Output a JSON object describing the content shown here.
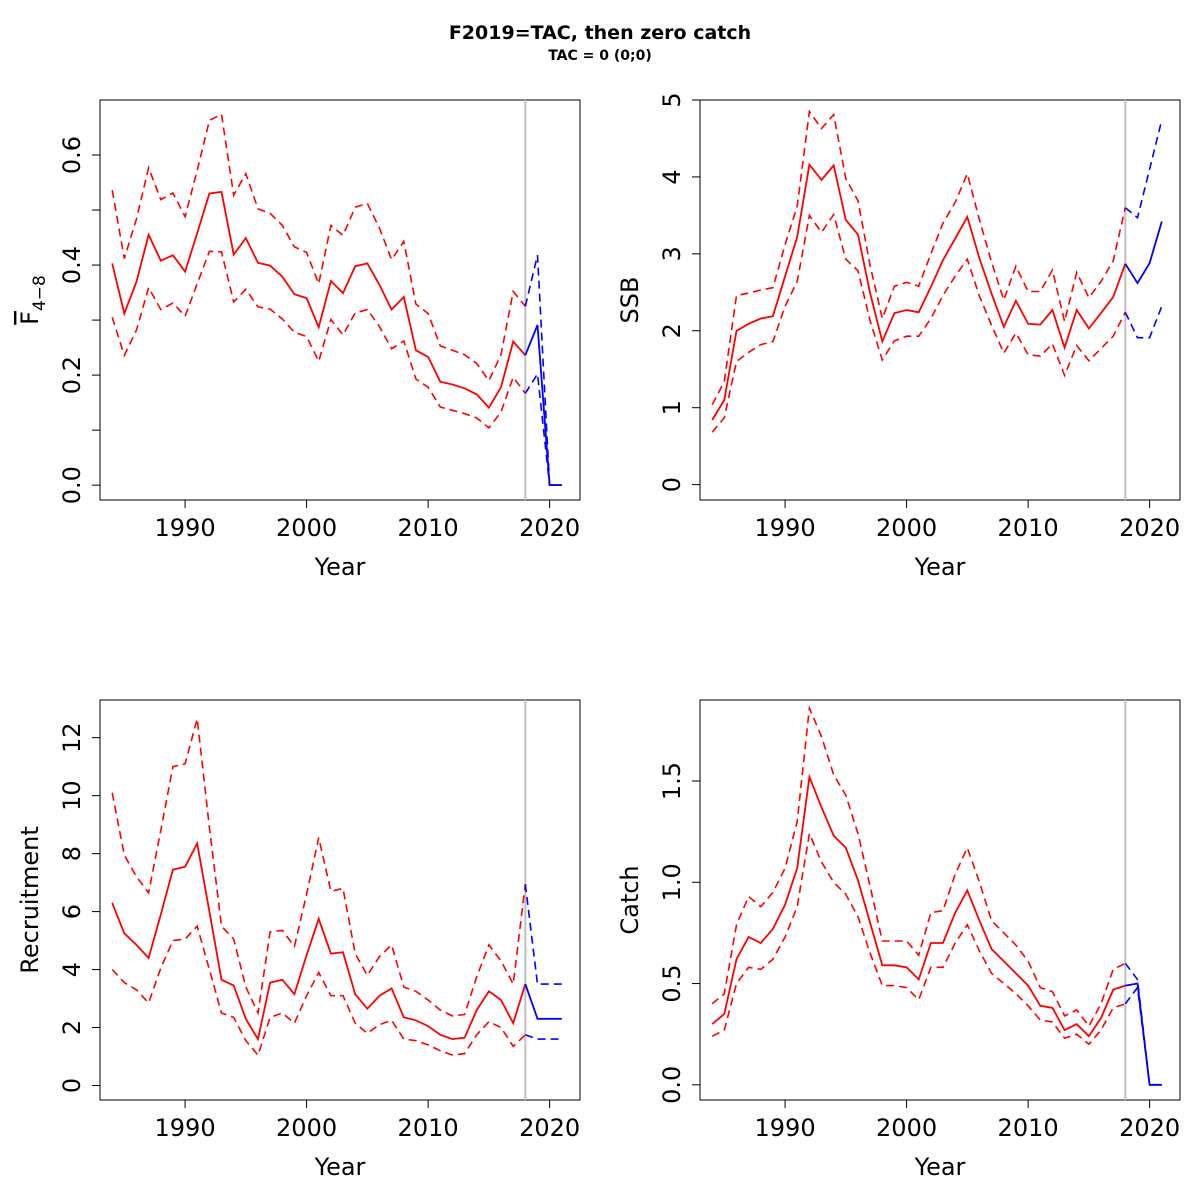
{
  "title": "F2019=TAC, then zero catch",
  "subtitle": "TAC = 0 (0;0)",
  "colors": {
    "historic": "#ff0000",
    "forecast": "#0000ff",
    "reference_line": "#c0c0c0"
  },
  "chart_data": [
    {
      "type": "line",
      "id": "fbar",
      "xlabel": "Year",
      "ylabel": "F",
      "ylabel_subscript": "4−8",
      "xlim": [
        1983,
        2022.5
      ],
      "ylim": [
        -0.027,
        0.7
      ],
      "xticks": [
        1990,
        2000,
        2010,
        2020
      ],
      "yticks": [
        0.0,
        0.2,
        0.4,
        0.6
      ],
      "ytick_labels": [
        "0.0",
        "0.2",
        "0.4",
        "0.6"
      ],
      "yminor": [
        0.1,
        0.3,
        0.5
      ],
      "vline_x": 2018,
      "historic": {
        "x": [
          1984,
          1985,
          1986,
          1987,
          1988,
          1989,
          1990,
          1991,
          1992,
          1993,
          1994,
          1995,
          1996,
          1997,
          1998,
          1999,
          2000,
          2001,
          2002,
          2003,
          2004,
          2005,
          2006,
          2007,
          2008,
          2009,
          2010,
          2011,
          2012,
          2013,
          2014,
          2015,
          2016,
          2017,
          2018
        ],
        "mean": [
          0.403,
          0.312,
          0.37,
          0.455,
          0.408,
          0.418,
          0.388,
          0.458,
          0.53,
          0.533,
          0.419,
          0.449,
          0.404,
          0.399,
          0.379,
          0.347,
          0.34,
          0.287,
          0.371,
          0.349,
          0.398,
          0.403,
          0.364,
          0.319,
          0.342,
          0.245,
          0.233,
          0.188,
          0.183,
          0.176,
          0.165,
          0.141,
          0.178,
          0.261,
          0.236
        ],
        "upper": [
          0.536,
          0.412,
          0.484,
          0.577,
          0.519,
          0.531,
          0.488,
          0.572,
          0.663,
          0.674,
          0.527,
          0.566,
          0.502,
          0.494,
          0.472,
          0.433,
          0.423,
          0.366,
          0.472,
          0.454,
          0.505,
          0.512,
          0.467,
          0.41,
          0.443,
          0.329,
          0.312,
          0.253,
          0.245,
          0.237,
          0.221,
          0.19,
          0.237,
          0.352,
          0.325
        ],
        "lower": [
          0.305,
          0.236,
          0.282,
          0.359,
          0.319,
          0.331,
          0.307,
          0.366,
          0.425,
          0.424,
          0.333,
          0.356,
          0.324,
          0.32,
          0.302,
          0.278,
          0.27,
          0.225,
          0.301,
          0.273,
          0.313,
          0.319,
          0.288,
          0.248,
          0.262,
          0.193,
          0.178,
          0.142,
          0.136,
          0.13,
          0.122,
          0.104,
          0.133,
          0.196,
          0.167
        ]
      },
      "forecast": {
        "x": [
          2018,
          2019,
          2020,
          2021
        ],
        "mean": [
          0.236,
          0.291,
          0.0,
          0.0
        ],
        "upper": [
          0.325,
          0.418,
          0.0,
          0.0
        ],
        "lower": [
          0.167,
          0.202,
          0.0,
          0.0
        ]
      }
    },
    {
      "type": "line",
      "id": "ssb",
      "xlabel": "Year",
      "ylabel": "SSB",
      "xlim": [
        1983,
        2022.5
      ],
      "ylim": [
        -0.2,
        5.0
      ],
      "xticks": [
        1990,
        2000,
        2010,
        2020
      ],
      "yticks": [
        0,
        1,
        2,
        3,
        4,
        5
      ],
      "ytick_labels": [
        "0",
        "1",
        "2",
        "3",
        "4",
        "5"
      ],
      "vline_x": 2018,
      "historic": {
        "x": [
          1984,
          1985,
          1986,
          1987,
          1988,
          1989,
          1990,
          1991,
          1992,
          1993,
          1994,
          1995,
          1996,
          1997,
          1998,
          1999,
          2000,
          2001,
          2002,
          2003,
          2004,
          2005,
          2006,
          2007,
          2008,
          2009,
          2010,
          2011,
          2012,
          2013,
          2014,
          2015,
          2016,
          2017,
          2018
        ],
        "mean": [
          0.84,
          1.1,
          2.0,
          2.09,
          2.16,
          2.19,
          2.71,
          3.22,
          4.16,
          3.96,
          4.15,
          3.44,
          3.25,
          2.49,
          1.86,
          2.23,
          2.27,
          2.24,
          2.57,
          2.92,
          3.2,
          3.48,
          2.94,
          2.48,
          2.05,
          2.39,
          2.09,
          2.08,
          2.27,
          1.78,
          2.27,
          2.03,
          2.23,
          2.44,
          2.87
        ],
        "upper": [
          1.04,
          1.34,
          2.46,
          2.49,
          2.53,
          2.56,
          3.12,
          3.62,
          4.85,
          4.63,
          4.81,
          3.98,
          3.69,
          2.85,
          2.16,
          2.58,
          2.63,
          2.58,
          3.0,
          3.4,
          3.67,
          4.04,
          3.44,
          2.89,
          2.4,
          2.84,
          2.51,
          2.51,
          2.79,
          2.12,
          2.76,
          2.43,
          2.64,
          2.91,
          3.6
        ],
        "lower": [
          0.68,
          0.87,
          1.6,
          1.72,
          1.82,
          1.86,
          2.32,
          2.64,
          3.5,
          3.28,
          3.51,
          2.93,
          2.78,
          2.13,
          1.62,
          1.87,
          1.93,
          1.93,
          2.16,
          2.46,
          2.71,
          2.93,
          2.45,
          2.07,
          1.71,
          1.97,
          1.69,
          1.67,
          1.83,
          1.42,
          1.81,
          1.61,
          1.77,
          1.93,
          2.24
        ]
      },
      "forecast": {
        "x": [
          2018,
          2019,
          2020,
          2021
        ],
        "mean": [
          2.87,
          2.62,
          2.88,
          3.42
        ],
        "upper": [
          3.6,
          3.47,
          4.1,
          4.74
        ],
        "lower": [
          2.24,
          1.91,
          1.91,
          2.32
        ]
      }
    },
    {
      "type": "line",
      "id": "recruitment",
      "xlabel": "Year",
      "ylabel": "Recruitment",
      "xlim": [
        1983,
        2022.5
      ],
      "ylim": [
        -0.5,
        13.3
      ],
      "xticks": [
        1990,
        2000,
        2010,
        2020
      ],
      "yticks": [
        0,
        2,
        4,
        6,
        8,
        10,
        12
      ],
      "ytick_labels": [
        "0",
        "2",
        "4",
        "6",
        "8",
        "10",
        "12"
      ],
      "vline_x": 2018,
      "historic": {
        "x": [
          1984,
          1985,
          1986,
          1987,
          1988,
          1989,
          1990,
          1991,
          1992,
          1993,
          1994,
          1995,
          1996,
          1997,
          1998,
          1999,
          2000,
          2001,
          2002,
          2003,
          2004,
          2005,
          2006,
          2007,
          2008,
          2009,
          2010,
          2011,
          2012,
          2013,
          2014,
          2015,
          2016,
          2017,
          2018
        ],
        "mean": [
          6.3,
          5.25,
          4.85,
          4.4,
          5.9,
          7.45,
          7.55,
          8.35,
          6.0,
          3.65,
          3.45,
          2.3,
          1.6,
          3.55,
          3.65,
          3.15,
          4.5,
          5.75,
          4.55,
          4.6,
          3.15,
          2.65,
          3.1,
          3.35,
          2.35,
          2.25,
          2.05,
          1.75,
          1.6,
          1.65,
          2.6,
          3.25,
          2.95,
          2.15,
          3.5
        ],
        "upper": [
          10.1,
          7.95,
          7.2,
          6.65,
          8.8,
          11.0,
          11.1,
          12.65,
          8.9,
          5.5,
          5.05,
          3.4,
          2.5,
          5.3,
          5.35,
          4.8,
          6.6,
          8.55,
          6.7,
          6.8,
          4.55,
          3.8,
          4.45,
          4.85,
          3.4,
          3.25,
          2.95,
          2.6,
          2.4,
          2.45,
          3.75,
          4.85,
          4.3,
          3.5,
          6.95
        ],
        "lower": [
          4.0,
          3.55,
          3.3,
          2.85,
          4.05,
          5.0,
          5.05,
          5.5,
          4.0,
          2.5,
          2.35,
          1.55,
          1.05,
          2.35,
          2.5,
          2.15,
          3.1,
          3.9,
          3.1,
          3.1,
          2.15,
          1.8,
          2.1,
          2.25,
          1.6,
          1.55,
          1.4,
          1.2,
          1.05,
          1.1,
          1.75,
          2.2,
          2.0,
          1.35,
          1.75
        ]
      },
      "forecast": {
        "x": [
          2018,
          2019,
          2020,
          2021
        ],
        "mean": [
          3.5,
          2.3,
          2.3,
          2.3
        ],
        "upper": [
          6.95,
          3.5,
          3.5,
          3.5
        ],
        "lower": [
          1.75,
          1.6,
          1.6,
          1.6
        ]
      }
    },
    {
      "type": "line",
      "id": "catch",
      "xlabel": "Year",
      "ylabel": "Catch",
      "xlim": [
        1983,
        2022.5
      ],
      "ylim": [
        -0.075,
        1.9
      ],
      "xticks": [
        1990,
        2000,
        2010,
        2020
      ],
      "yticks": [
        0.0,
        0.5,
        1.0,
        1.5
      ],
      "ytick_labels": [
        "0.0",
        "0.5",
        "1.0",
        "1.5"
      ],
      "vline_x": 2018,
      "historic": {
        "x": [
          1984,
          1985,
          1986,
          1987,
          1988,
          1989,
          1990,
          1991,
          1992,
          1993,
          1994,
          1995,
          1996,
          1997,
          1998,
          1999,
          2000,
          2001,
          2002,
          2003,
          2004,
          2005,
          2006,
          2007,
          2008,
          2009,
          2010,
          2011,
          2012,
          2013,
          2014,
          2015,
          2016,
          2017,
          2018
        ],
        "mean": [
          0.3,
          0.35,
          0.62,
          0.73,
          0.7,
          0.77,
          0.89,
          1.07,
          1.52,
          1.37,
          1.23,
          1.17,
          1.01,
          0.8,
          0.59,
          0.59,
          0.58,
          0.52,
          0.7,
          0.7,
          0.85,
          0.96,
          0.81,
          0.67,
          0.61,
          0.55,
          0.49,
          0.39,
          0.38,
          0.27,
          0.3,
          0.24,
          0.33,
          0.47,
          0.49
        ],
        "upper": [
          0.4,
          0.45,
          0.79,
          0.93,
          0.88,
          0.95,
          1.07,
          1.3,
          1.86,
          1.72,
          1.53,
          1.43,
          1.24,
          0.98,
          0.71,
          0.71,
          0.71,
          0.64,
          0.85,
          0.86,
          1.04,
          1.17,
          1.0,
          0.81,
          0.75,
          0.69,
          0.61,
          0.48,
          0.46,
          0.34,
          0.37,
          0.29,
          0.4,
          0.57,
          0.6
        ],
        "lower": [
          0.24,
          0.27,
          0.5,
          0.58,
          0.57,
          0.62,
          0.73,
          0.88,
          1.24,
          1.1,
          1.0,
          0.94,
          0.83,
          0.65,
          0.49,
          0.49,
          0.48,
          0.42,
          0.58,
          0.58,
          0.7,
          0.79,
          0.66,
          0.55,
          0.5,
          0.45,
          0.39,
          0.32,
          0.31,
          0.23,
          0.25,
          0.2,
          0.27,
          0.38,
          0.4
        ]
      },
      "forecast": {
        "x": [
          2018,
          2019,
          2020,
          2021
        ],
        "mean": [
          0.49,
          0.5,
          0.0,
          0.0
        ],
        "upper": [
          0.6,
          0.52,
          0.0,
          0.0
        ],
        "lower": [
          0.4,
          0.48,
          0.0,
          0.0
        ]
      }
    }
  ]
}
